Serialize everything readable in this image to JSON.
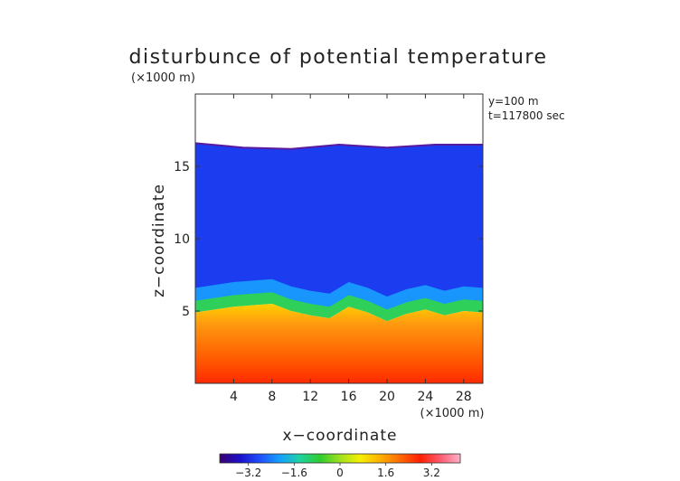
{
  "chart_data": {
    "type": "heatmap",
    "title": "disturbunce of potential temperature",
    "unit_label": "(×1000 m)",
    "xlabel": "x−coordinate",
    "ylabel": "z−coordinate",
    "x_unit_label": "(×1000 m)",
    "annotations": [
      "y=100 m",
      "t=117800 sec"
    ],
    "xlim": [
      0,
      30
    ],
    "ylim": [
      0,
      20
    ],
    "x_ticks": [
      4,
      8,
      12,
      16,
      20,
      24,
      28
    ],
    "x_tick_labels": [
      "4",
      "8",
      "12",
      "16",
      "20",
      "24",
      "28"
    ],
    "y_ticks": [
      5,
      10,
      15
    ],
    "y_tick_labels": [
      "5",
      "10",
      "15"
    ],
    "colorbar": {
      "range": [
        -4.2,
        4.2
      ],
      "ticks": [
        -3.2,
        -1.6,
        0,
        1.6,
        3.2
      ],
      "tick_labels": [
        "−3.2",
        "−1.6",
        "0",
        "1.6",
        "3.2"
      ],
      "colors": [
        "#3b0070",
        "#1a10c8",
        "#1f4fff",
        "#14a0ff",
        "#1fd2a0",
        "#2ecc2e",
        "#9fe020",
        "#f5f000",
        "#ffb000",
        "#ff6a00",
        "#ff1e00",
        "#ff5a6e",
        "#ffb0c8"
      ]
    },
    "series": [
      {
        "name": "",
        "layer_top_z": [
          16.6,
          16.3,
          16.2,
          16.5,
          16.3,
          16.5,
          16.5
        ]
      },
      {
        "name": "",
        "transition_z_x": [
          0,
          4,
          8,
          10,
          12,
          14,
          16,
          18,
          20,
          22,
          24,
          26,
          28,
          30
        ],
        "transition_z": [
          5.2,
          5.6,
          5.8,
          5.3,
          5.0,
          4.8,
          5.6,
          5.2,
          4.6,
          5.1,
          5.4,
          5.0,
          5.3,
          5.2
        ]
      },
      {
        "name": "",
        "surface_value": 3.6,
        "upper_value": -3.4
      }
    ]
  }
}
